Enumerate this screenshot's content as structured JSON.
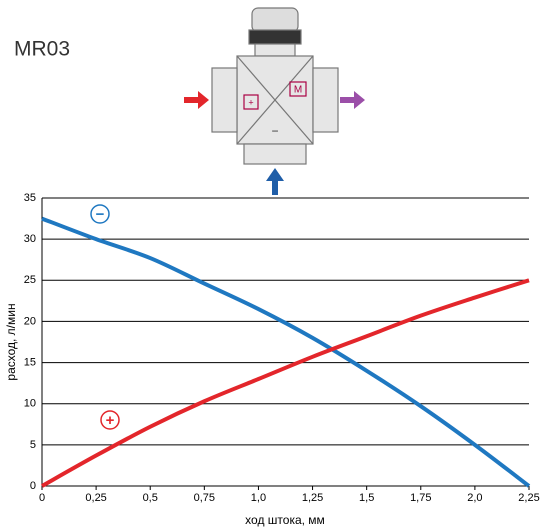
{
  "chart_data": {
    "type": "line",
    "title": "MR03",
    "x": [
      0,
      0.25,
      0.5,
      0.75,
      1.0,
      1.25,
      1.5,
      1.75,
      2.0,
      2.25
    ],
    "series": [
      {
        "name": "−",
        "color": "#1f78c1",
        "values": [
          32.5,
          30,
          27.7,
          24.6,
          21.5,
          18,
          14,
          9.7,
          5,
          0
        ]
      },
      {
        "name": "+",
        "color": "#e3262b",
        "values": [
          0,
          3.7,
          7.2,
          10.3,
          13,
          15.7,
          18.2,
          20.7,
          22.9,
          25
        ]
      }
    ],
    "xlim": [
      0,
      2.25
    ],
    "xticks": [
      0,
      {
        "value": 0.25,
        "label": "0,25"
      },
      {
        "value": 0.5,
        "label": "0,5"
      },
      {
        "value": 0.75,
        "label": "0,75"
      },
      {
        "value": 1.0,
        "label": "1,0"
      },
      {
        "value": 1.25,
        "label": "1,25"
      },
      {
        "value": 1.5,
        "label": "1,5"
      },
      {
        "value": 1.75,
        "label": "1,75"
      },
      {
        "value": 2.0,
        "label": "2,0"
      },
      {
        "value": 2.25,
        "label": "2,25"
      }
    ],
    "ylim": [
      0,
      35
    ],
    "yticks": [
      0,
      5,
      10,
      15,
      20,
      25,
      30,
      35
    ],
    "xlabel": "ход штока, мм",
    "ylabel": "расход, л/мин",
    "grid": true
  },
  "diagram": {
    "labels": [
      "+",
      "M",
      "−"
    ]
  }
}
